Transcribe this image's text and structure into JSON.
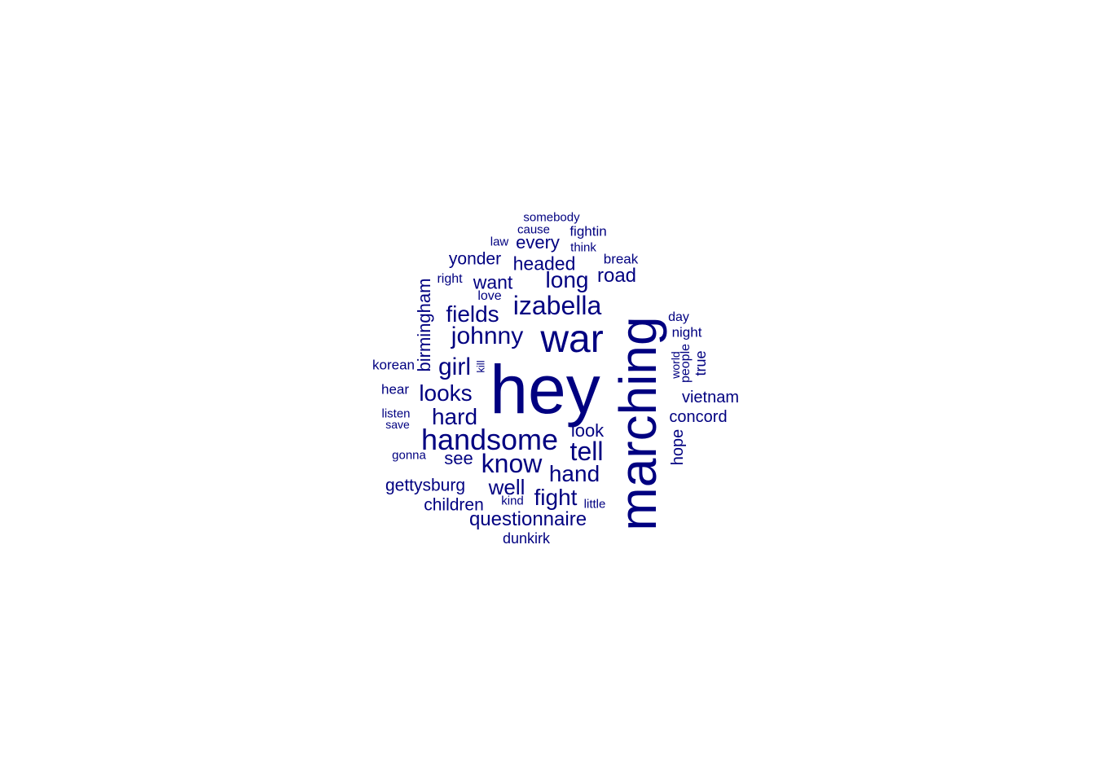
{
  "colors": {
    "word": "#000080",
    "background": "#ffffff"
  },
  "words": [
    {
      "text": "hey",
      "freq": 30
    },
    {
      "text": "marching",
      "freq": 28
    },
    {
      "text": "war",
      "freq": 12
    },
    {
      "text": "handsome",
      "freq": 10
    },
    {
      "text": "izabella",
      "freq": 9
    },
    {
      "text": "johnny",
      "freq": 9
    },
    {
      "text": "know",
      "freq": 8
    },
    {
      "text": "tell",
      "freq": 8
    },
    {
      "text": "girl",
      "freq": 8
    },
    {
      "text": "long",
      "freq": 7
    },
    {
      "text": "fields",
      "freq": 7
    },
    {
      "text": "hand",
      "freq": 7
    },
    {
      "text": "fight",
      "freq": 7
    },
    {
      "text": "well",
      "freq": 7
    },
    {
      "text": "looks",
      "freq": 7
    },
    {
      "text": "hard",
      "freq": 7
    },
    {
      "text": "questionnaire",
      "freq": 6
    },
    {
      "text": "headed",
      "freq": 6
    },
    {
      "text": "want",
      "freq": 6
    },
    {
      "text": "road",
      "freq": 6
    },
    {
      "text": "every",
      "freq": 5
    },
    {
      "text": "yonder",
      "freq": 5
    },
    {
      "text": "birmingham",
      "freq": 5
    },
    {
      "text": "see",
      "freq": 5
    },
    {
      "text": "look",
      "freq": 5
    },
    {
      "text": "gettysburg",
      "freq": 5
    },
    {
      "text": "children",
      "freq": 5
    },
    {
      "text": "vietnam",
      "freq": 5
    },
    {
      "text": "concord",
      "freq": 5
    },
    {
      "text": "hope",
      "freq": 5
    },
    {
      "text": "night",
      "freq": 4
    },
    {
      "text": "true",
      "freq": 4
    },
    {
      "text": "korean",
      "freq": 4
    },
    {
      "text": "hear",
      "freq": 4
    },
    {
      "text": "dunkirk",
      "freq": 4
    },
    {
      "text": "fightin",
      "freq": 4
    },
    {
      "text": "break",
      "freq": 4
    },
    {
      "text": "somebody",
      "freq": 3
    },
    {
      "text": "cause",
      "freq": 3
    },
    {
      "text": "law",
      "freq": 3
    },
    {
      "text": "think",
      "freq": 3
    },
    {
      "text": "right",
      "freq": 3
    },
    {
      "text": "love",
      "freq": 3
    },
    {
      "text": "day",
      "freq": 3
    },
    {
      "text": "people",
      "freq": 3
    },
    {
      "text": "world",
      "freq": 3
    },
    {
      "text": "kill",
      "freq": 3
    },
    {
      "text": "listen",
      "freq": 3
    },
    {
      "text": "save",
      "freq": 3
    },
    {
      "text": "gonna",
      "freq": 3
    },
    {
      "text": "kind",
      "freq": 3
    },
    {
      "text": "little",
      "freq": 3
    }
  ]
}
